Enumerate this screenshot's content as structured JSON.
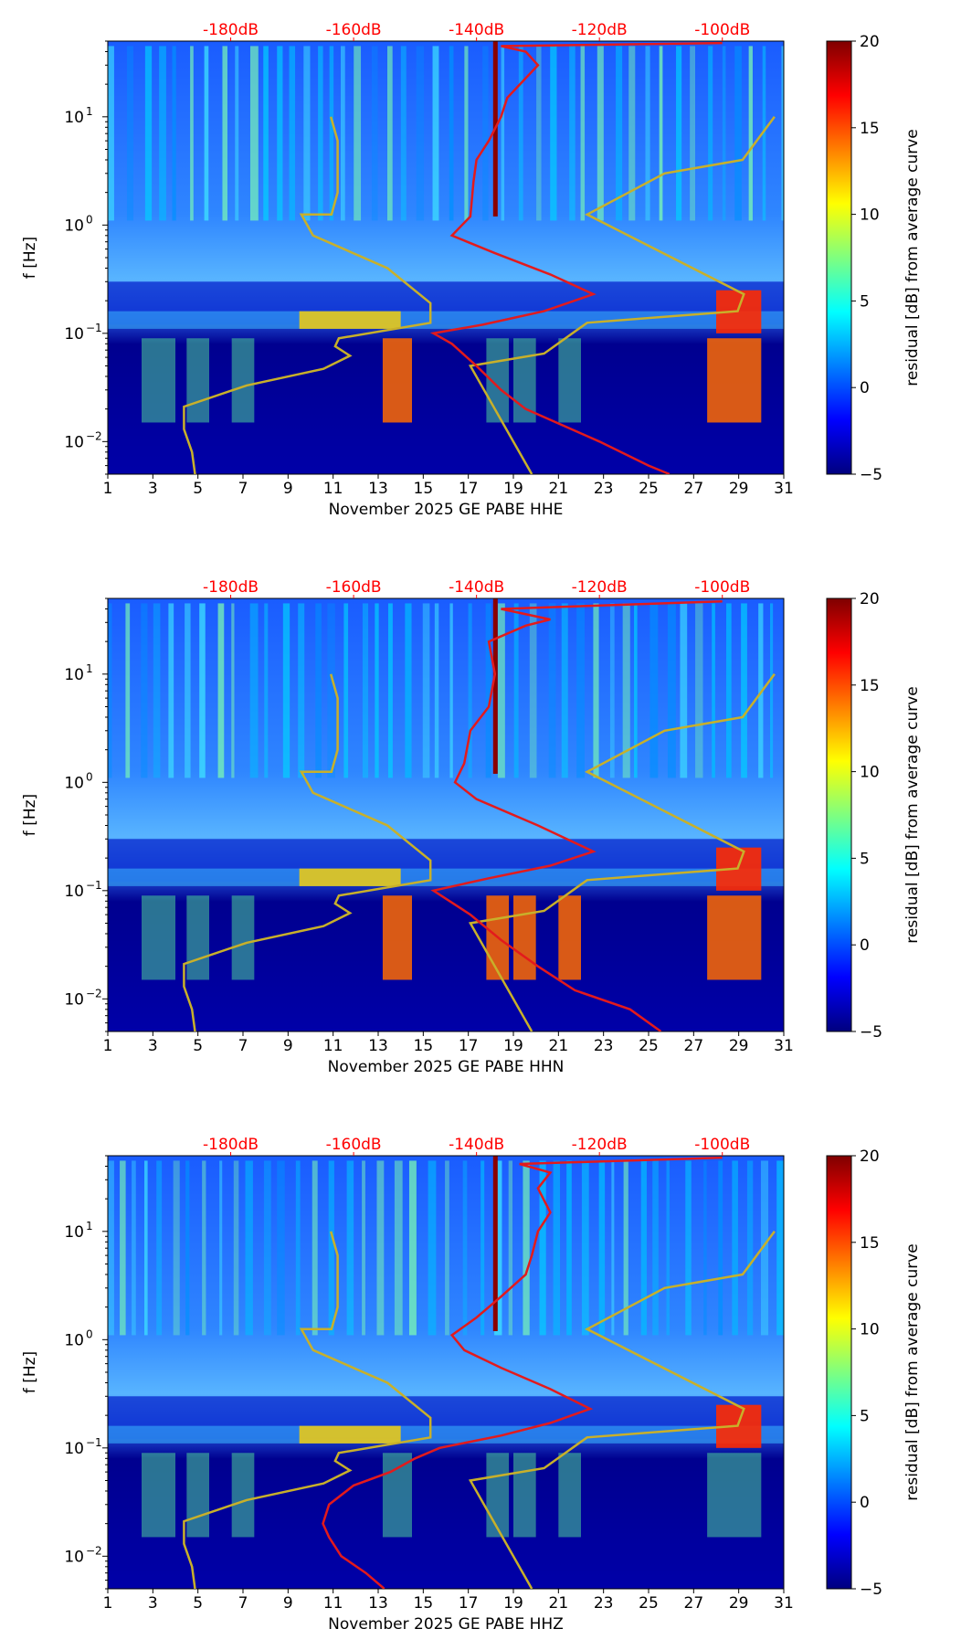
{
  "colors": {
    "top_axis_label": "#ff0000",
    "noise_model": "#c8b02a",
    "average_curve": "#e31a1c",
    "colormap": [
      "#00007f",
      "#0000ff",
      "#007fff",
      "#00ffff",
      "#7fff7f",
      "#ffff00",
      "#ff7f00",
      "#ff0000",
      "#7f0000"
    ]
  },
  "chart_data": [
    {
      "type": "heatmap",
      "title": "",
      "xlabel": "November 2025 GE PABE  HHE",
      "ylabel": "f [Hz]",
      "x_range": [
        1,
        31
      ],
      "x_ticks": [
        "1",
        "3",
        "5",
        "7",
        "9",
        "11",
        "13",
        "15",
        "17",
        "19",
        "21",
        "23",
        "25",
        "27",
        "29",
        "31"
      ],
      "y_scale": "log",
      "y_range_hz": [
        0.005,
        50
      ],
      "y_ticks": [
        {
          "value": 0.01,
          "base": "10",
          "exp": "−2"
        },
        {
          "value": 0.1,
          "base": "10",
          "exp": "−1"
        },
        {
          "value": 1,
          "base": "10",
          "exp": "0"
        },
        {
          "value": 10,
          "base": "10",
          "exp": "1"
        }
      ],
      "top_axis": {
        "label_color": "#ff0000",
        "range_db": [
          -200,
          -90
        ],
        "tick_labels": [
          "-180dB",
          "-160dB",
          "-140dB",
          "-120dB",
          "-100dB"
        ],
        "tick_values_db": [
          -180,
          -160,
          -140,
          -120,
          -100
        ]
      },
      "colorbar": {
        "label": "residual [dB] from average curve",
        "range": [
          -5,
          20
        ],
        "ticks": [
          "20",
          "15",
          "10",
          "5",
          "0",
          "−5"
        ],
        "tick_values": [
          20,
          15,
          10,
          5,
          0,
          -5
        ]
      },
      "noise_model_low": [
        [
          -185.8,
          0.005
        ],
        [
          -186.3,
          0.008
        ],
        [
          -187.6,
          0.013
        ],
        [
          -187.6,
          0.021
        ],
        [
          -177.4,
          0.033
        ],
        [
          -164.9,
          0.047
        ],
        [
          -160.6,
          0.062
        ],
        [
          -163.0,
          0.076
        ],
        [
          -162.4,
          0.09
        ],
        [
          -147.5,
          0.125
        ],
        [
          -147.5,
          0.19
        ],
        [
          -154.5,
          0.4
        ],
        [
          -166.6,
          0.8
        ],
        [
          -168.5,
          1.25
        ],
        [
          -163.6,
          1.25
        ],
        [
          -162.6,
          2.0
        ],
        [
          -162.6,
          6.0
        ],
        [
          -163.7,
          10.0
        ]
      ],
      "noise_model_high": [
        [
          -131.0,
          0.005
        ],
        [
          -141.0,
          0.05
        ],
        [
          -129.0,
          0.065
        ],
        [
          -122.0,
          0.125
        ],
        [
          -97.5,
          0.16
        ],
        [
          -96.5,
          0.23
        ],
        [
          -122.0,
          1.25
        ],
        [
          -109.4,
          3.0
        ],
        [
          -96.7,
          4.0
        ],
        [
          -91.5,
          10.0
        ]
      ],
      "average_curve_db": [
        [
          -108.6,
          0.005
        ],
        [
          -112.0,
          0.006
        ],
        [
          -120.0,
          0.01
        ],
        [
          -127.0,
          0.015
        ],
        [
          -132.0,
          0.02
        ],
        [
          -136.0,
          0.03
        ],
        [
          -140.0,
          0.05
        ],
        [
          -144.0,
          0.08
        ],
        [
          -147.0,
          0.1
        ],
        [
          -139.0,
          0.12
        ],
        [
          -129.0,
          0.16
        ],
        [
          -121.0,
          0.23
        ],
        [
          -128.0,
          0.35
        ],
        [
          -137.0,
          0.55
        ],
        [
          -144.0,
          0.8
        ],
        [
          -141.0,
          1.2
        ],
        [
          -140.5,
          2.5
        ],
        [
          -140.0,
          4.0
        ],
        [
          -138.0,
          6.0
        ],
        [
          -136.0,
          10.0
        ],
        [
          -135.0,
          15.0
        ],
        [
          -130.0,
          30.0
        ],
        [
          -132.0,
          40.0
        ],
        [
          -136.0,
          45.0
        ],
        [
          -100.0,
          48.0
        ]
      ]
    },
    {
      "type": "heatmap",
      "title": "",
      "xlabel": "November 2025 GE PABE  HHN",
      "ylabel": "f [Hz]",
      "x_range": [
        1,
        31
      ],
      "x_ticks": [
        "1",
        "3",
        "5",
        "7",
        "9",
        "11",
        "13",
        "15",
        "17",
        "19",
        "21",
        "23",
        "25",
        "27",
        "29",
        "31"
      ],
      "y_scale": "log",
      "y_range_hz": [
        0.005,
        50
      ],
      "y_ticks": [
        {
          "value": 0.01,
          "base": "10",
          "exp": "−2"
        },
        {
          "value": 0.1,
          "base": "10",
          "exp": "−1"
        },
        {
          "value": 1,
          "base": "10",
          "exp": "0"
        },
        {
          "value": 10,
          "base": "10",
          "exp": "1"
        }
      ],
      "top_axis": {
        "label_color": "#ff0000",
        "range_db": [
          -200,
          -90
        ],
        "tick_labels": [
          "-180dB",
          "-160dB",
          "-140dB",
          "-120dB",
          "-100dB"
        ],
        "tick_values_db": [
          -180,
          -160,
          -140,
          -120,
          -100
        ]
      },
      "colorbar": {
        "label": "residual [dB] from average curve",
        "range": [
          -5,
          20
        ],
        "ticks": [
          "20",
          "15",
          "10",
          "5",
          "0",
          "−5"
        ],
        "tick_values": [
          20,
          15,
          10,
          5,
          0,
          -5
        ]
      },
      "noise_model_low": [
        [
          -185.8,
          0.005
        ],
        [
          -186.3,
          0.008
        ],
        [
          -187.6,
          0.013
        ],
        [
          -187.6,
          0.021
        ],
        [
          -177.4,
          0.033
        ],
        [
          -164.9,
          0.047
        ],
        [
          -160.6,
          0.062
        ],
        [
          -163.0,
          0.076
        ],
        [
          -162.4,
          0.09
        ],
        [
          -147.5,
          0.125
        ],
        [
          -147.5,
          0.19
        ],
        [
          -154.5,
          0.4
        ],
        [
          -166.6,
          0.8
        ],
        [
          -168.5,
          1.25
        ],
        [
          -163.6,
          1.25
        ],
        [
          -162.6,
          2.0
        ],
        [
          -162.6,
          6.0
        ],
        [
          -163.7,
          10.0
        ]
      ],
      "noise_model_high": [
        [
          -131.0,
          0.005
        ],
        [
          -141.0,
          0.05
        ],
        [
          -129.0,
          0.065
        ],
        [
          -122.0,
          0.125
        ],
        [
          -97.5,
          0.16
        ],
        [
          -96.5,
          0.23
        ],
        [
          -122.0,
          1.25
        ],
        [
          -109.4,
          3.0
        ],
        [
          -96.7,
          4.0
        ],
        [
          -91.5,
          10.0
        ]
      ],
      "average_curve_db": [
        [
          -110.0,
          0.005
        ],
        [
          -115.0,
          0.008
        ],
        [
          -124.0,
          0.012
        ],
        [
          -130.0,
          0.02
        ],
        [
          -136.0,
          0.035
        ],
        [
          -141.0,
          0.06
        ],
        [
          -147.0,
          0.1
        ],
        [
          -138.0,
          0.13
        ],
        [
          -128.0,
          0.17
        ],
        [
          -121.0,
          0.23
        ],
        [
          -130.0,
          0.4
        ],
        [
          -140.0,
          0.7
        ],
        [
          -143.5,
          1.0
        ],
        [
          -142.0,
          1.5
        ],
        [
          -141.0,
          3.0
        ],
        [
          -138.0,
          5.0
        ],
        [
          -137.0,
          10.0
        ],
        [
          -138.0,
          20.0
        ],
        [
          -132.0,
          28.0
        ],
        [
          -128.0,
          32.0
        ],
        [
          -136.0,
          40.0
        ],
        [
          -100.0,
          47.0
        ]
      ]
    },
    {
      "type": "heatmap",
      "title": "",
      "xlabel": "November 2025 GE PABE  HHZ",
      "ylabel": "f [Hz]",
      "x_range": [
        1,
        31
      ],
      "x_ticks": [
        "1",
        "3",
        "5",
        "7",
        "9",
        "11",
        "13",
        "15",
        "17",
        "19",
        "21",
        "23",
        "25",
        "27",
        "29",
        "31"
      ],
      "y_scale": "log",
      "y_range_hz": [
        0.005,
        50
      ],
      "y_ticks": [
        {
          "value": 0.01,
          "base": "10",
          "exp": "−2"
        },
        {
          "value": 0.1,
          "base": "10",
          "exp": "−1"
        },
        {
          "value": 1,
          "base": "10",
          "exp": "0"
        },
        {
          "value": 10,
          "base": "10",
          "exp": "1"
        }
      ],
      "top_axis": {
        "label_color": "#ff0000",
        "range_db": [
          -200,
          -90
        ],
        "tick_labels": [
          "-180dB",
          "-160dB",
          "-140dB",
          "-120dB",
          "-100dB"
        ],
        "tick_values_db": [
          -180,
          -160,
          -140,
          -120,
          -100
        ]
      },
      "colorbar": {
        "label": "residual [dB] from average curve",
        "range": [
          -5,
          20
        ],
        "ticks": [
          "20",
          "15",
          "10",
          "5",
          "0",
          "−5"
        ],
        "tick_values": [
          20,
          15,
          10,
          5,
          0,
          -5
        ]
      },
      "noise_model_low": [
        [
          -185.8,
          0.005
        ],
        [
          -186.3,
          0.008
        ],
        [
          -187.6,
          0.013
        ],
        [
          -187.6,
          0.021
        ],
        [
          -177.4,
          0.033
        ],
        [
          -164.9,
          0.047
        ],
        [
          -160.6,
          0.062
        ],
        [
          -163.0,
          0.076
        ],
        [
          -162.4,
          0.09
        ],
        [
          -147.5,
          0.125
        ],
        [
          -147.5,
          0.19
        ],
        [
          -154.5,
          0.4
        ],
        [
          -166.6,
          0.8
        ],
        [
          -168.5,
          1.25
        ],
        [
          -163.6,
          1.25
        ],
        [
          -162.6,
          2.0
        ],
        [
          -162.6,
          6.0
        ],
        [
          -163.7,
          10.0
        ]
      ],
      "noise_model_high": [
        [
          -131.0,
          0.005
        ],
        [
          -141.0,
          0.05
        ],
        [
          -129.0,
          0.065
        ],
        [
          -122.0,
          0.125
        ],
        [
          -97.5,
          0.16
        ],
        [
          -96.5,
          0.23
        ],
        [
          -122.0,
          1.25
        ],
        [
          -109.4,
          3.0
        ],
        [
          -96.7,
          4.0
        ],
        [
          -91.5,
          10.0
        ]
      ],
      "average_curve_db": [
        [
          -155.0,
          0.005
        ],
        [
          -158.0,
          0.007
        ],
        [
          -162.0,
          0.01
        ],
        [
          -164.0,
          0.015
        ],
        [
          -165.0,
          0.02
        ],
        [
          -164.0,
          0.03
        ],
        [
          -160.0,
          0.045
        ],
        [
          -154.0,
          0.06
        ],
        [
          -150.0,
          0.08
        ],
        [
          -146.0,
          0.1
        ],
        [
          -136.0,
          0.13
        ],
        [
          -128.0,
          0.17
        ],
        [
          -121.5,
          0.23
        ],
        [
          -128.0,
          0.35
        ],
        [
          -136.0,
          0.55
        ],
        [
          -142.0,
          0.8
        ],
        [
          -144.0,
          1.1
        ],
        [
          -140.0,
          1.6
        ],
        [
          -136.0,
          2.5
        ],
        [
          -132.0,
          4.0
        ],
        [
          -131.0,
          6.0
        ],
        [
          -130.0,
          10.0
        ],
        [
          -128.0,
          15.0
        ],
        [
          -130.0,
          25.0
        ],
        [
          -128.0,
          35.0
        ],
        [
          -133.0,
          42.0
        ],
        [
          -100.0,
          48.0
        ]
      ]
    }
  ]
}
